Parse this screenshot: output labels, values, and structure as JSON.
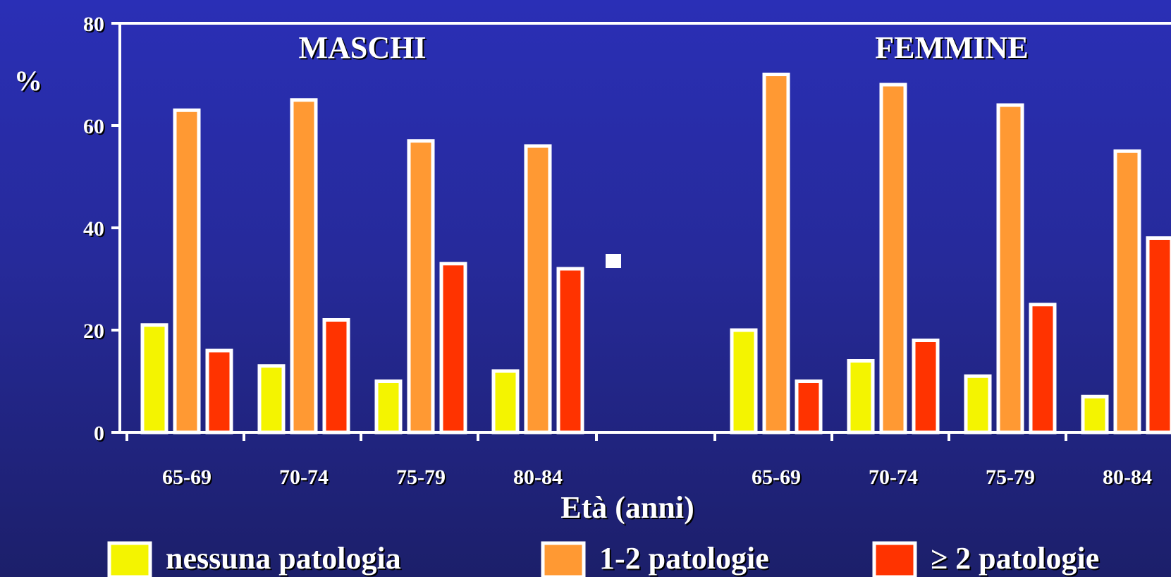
{
  "chart_data": {
    "type": "bar",
    "ylabel": "%",
    "xlabel": "Età (anni)",
    "ylim": [
      0,
      80
    ],
    "yticks": [
      0,
      20,
      40,
      60,
      80
    ],
    "grid": false,
    "legend_position": "bottom",
    "groups": [
      {
        "title": "MASCHI",
        "categories": [
          "65-69",
          "70-74",
          "75-79",
          "80-84"
        ],
        "series": [
          {
            "name": "nessuna patologia",
            "color": "#f4f400",
            "values": [
              21,
              13,
              10,
              12
            ]
          },
          {
            "name": "1-2 patologie",
            "color": "#ff9933",
            "values": [
              63,
              65,
              57,
              56
            ]
          },
          {
            "name": "≥ 2 patologie",
            "color": "#ff3300",
            "values": [
              16,
              22,
              33,
              32
            ]
          }
        ]
      },
      {
        "title": "FEMMINE",
        "categories": [
          "65-69",
          "70-74",
          "75-79",
          "80-84"
        ],
        "series": [
          {
            "name": "nessuna patologia",
            "color": "#f4f400",
            "values": [
              20,
              14,
              11,
              7
            ]
          },
          {
            "name": "1-2 patologie",
            "color": "#ff9933",
            "values": [
              70,
              68,
              64,
              55
            ]
          },
          {
            "name": "≥ 2 patologie",
            "color": "#ff3300",
            "values": [
              10,
              18,
              25,
              38
            ]
          }
        ]
      }
    ]
  }
}
